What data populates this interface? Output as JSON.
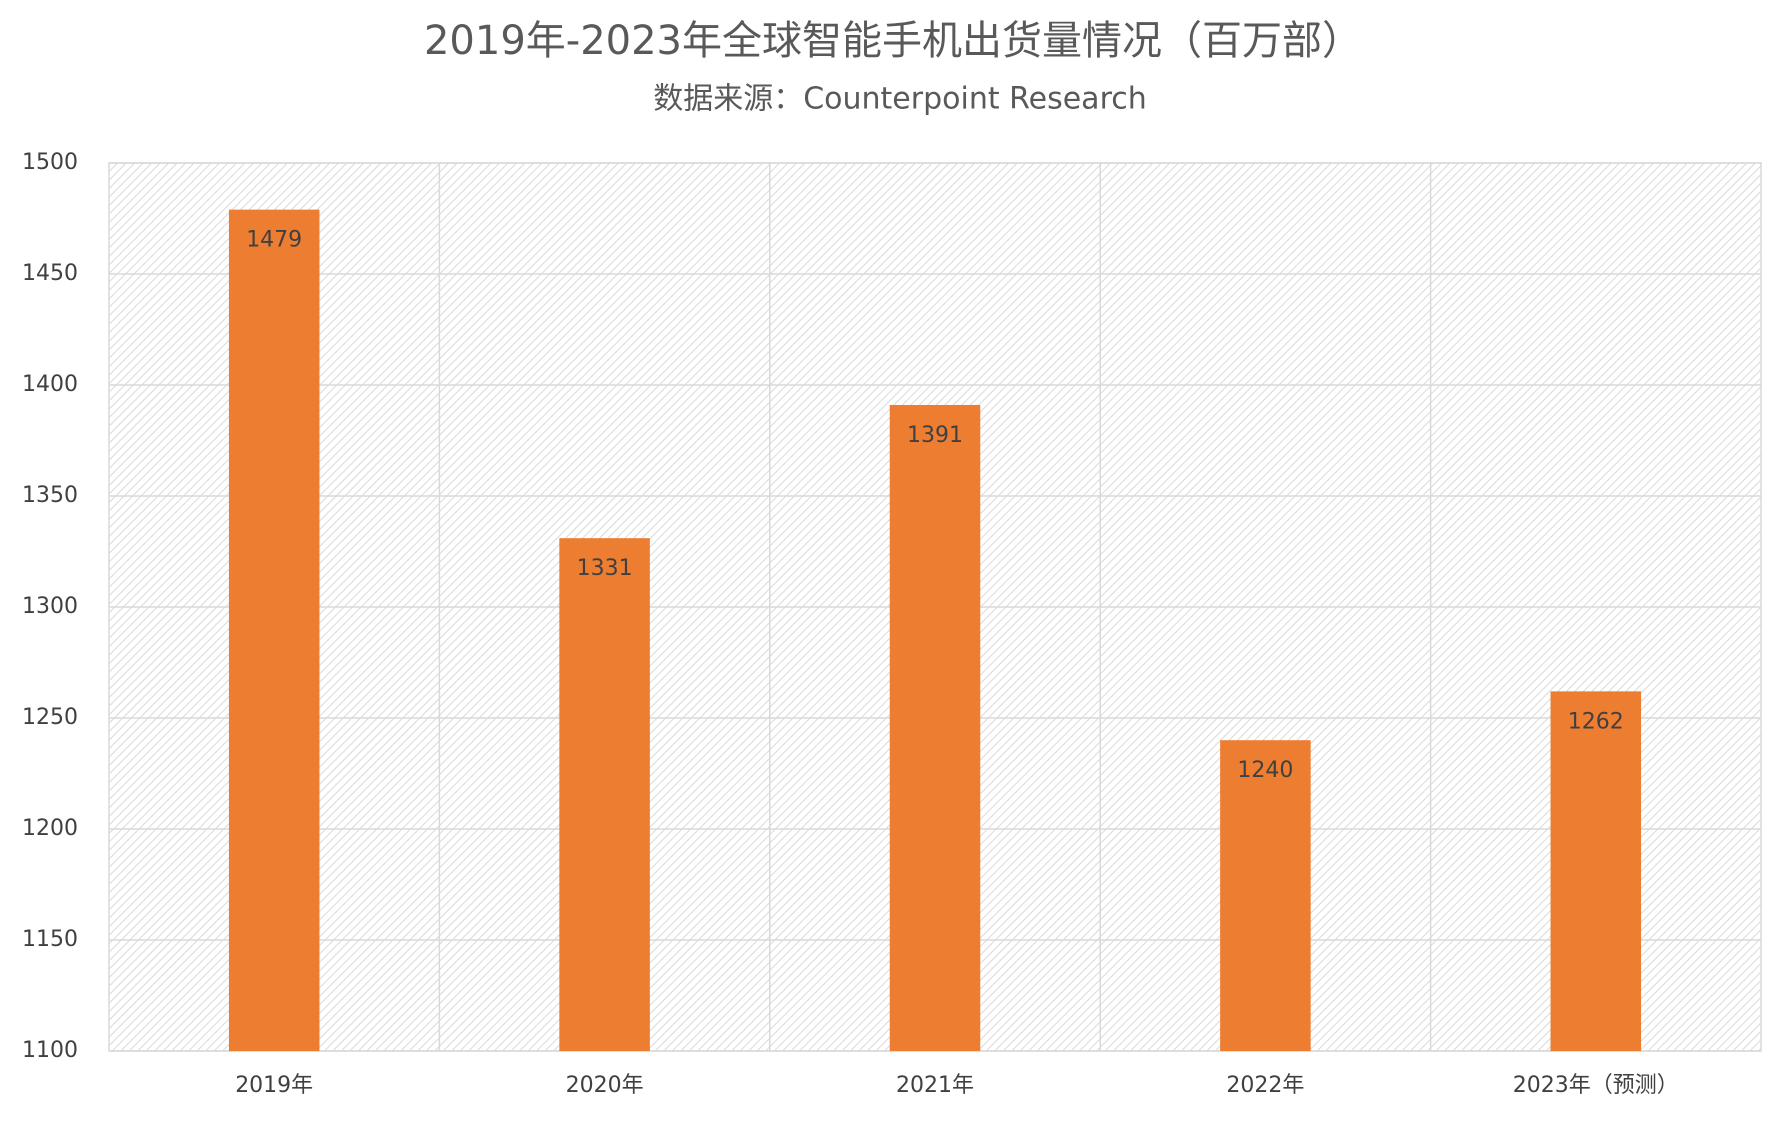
{
  "chart_data": {
    "type": "bar",
    "title": "2019年-2023年全球智能手机出货量情况（百万部）",
    "subtitle": "数据来源：Counterpoint Research",
    "categories": [
      "2019年",
      "2020年",
      "2021年",
      "2022年",
      "2023年（预测）"
    ],
    "values": [
      1479,
      1331,
      1391,
      1240,
      1262
    ],
    "color": "#ed7d31",
    "ylim": [
      1100,
      1500
    ],
    "yticks": [
      1100,
      1150,
      1200,
      1250,
      1300,
      1350,
      1400,
      1450,
      1500
    ],
    "grid": true
  }
}
